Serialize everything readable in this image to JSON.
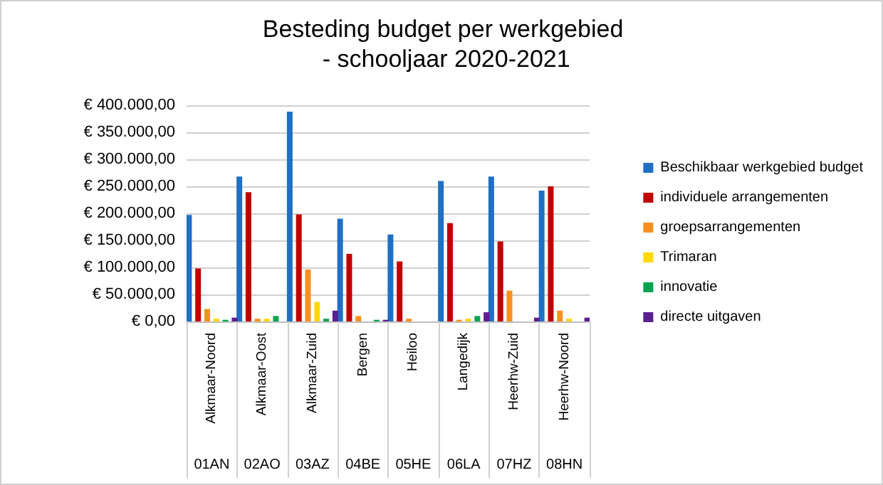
{
  "chart_data": {
    "type": "bar",
    "title": "Besteding budget per werkgebied",
    "subtitle": " - schooljaar 2020-2021",
    "categories": [
      "Alkmaar-Noord",
      "Alkmaar-Oost",
      "Alkmaar-Zuid",
      "Bergen",
      "Heiloo",
      "Langedijk",
      "Heerhw-Zuid",
      "Heerhw-Noord"
    ],
    "annotations": [
      "01AN",
      "02AO",
      "03AZ",
      "04BE",
      "05HE",
      "06LA",
      "07HZ",
      "08HN"
    ],
    "series": [
      {
        "name": "Beschikbaar werkgebied budget",
        "color": "#1f6fc5",
        "values": [
          197000,
          268000,
          388000,
          190000,
          161000,
          260000,
          268000,
          242000
        ]
      },
      {
        "name": "individuele arrangementen",
        "color": "#c00000",
        "values": [
          98000,
          239000,
          198000,
          125000,
          111000,
          182000,
          148000,
          250000
        ]
      },
      {
        "name": "groepsarrangementen",
        "color": "#f7901e",
        "values": [
          23000,
          5000,
          96000,
          10000,
          5000,
          3000,
          57000,
          20000
        ]
      },
      {
        "name": "Trimaran",
        "color": "#ffd700",
        "values": [
          5000,
          5000,
          36000,
          0,
          0,
          5000,
          0,
          5000
        ]
      },
      {
        "name": "innovatie",
        "color": "#00a550",
        "values": [
          3000,
          10000,
          5000,
          3000,
          0,
          10000,
          0,
          0
        ]
      },
      {
        "name": "directe uitgaven",
        "color": "#5b1f8f",
        "values": [
          7000,
          0,
          20000,
          3000,
          0,
          17000,
          7000,
          7000
        ]
      }
    ],
    "ylim": [
      0,
      400000
    ],
    "yticks": [
      {
        "value": 0,
        "label": "€ 0,00"
      },
      {
        "value": 50000,
        "label": "€ 50.000,00"
      },
      {
        "value": 100000,
        "label": "€ 100.000,00"
      },
      {
        "value": 150000,
        "label": "€ 150.000,00"
      },
      {
        "value": 200000,
        "label": "€ 200.000,00"
      },
      {
        "value": 250000,
        "label": "€ 250.000,00"
      },
      {
        "value": 300000,
        "label": "€ 300.000,00"
      },
      {
        "value": 350000,
        "label": "€ 350.000,00"
      },
      {
        "value": 400000,
        "label": "€ 400.000,00"
      }
    ],
    "grid": true,
    "legend": "right"
  }
}
